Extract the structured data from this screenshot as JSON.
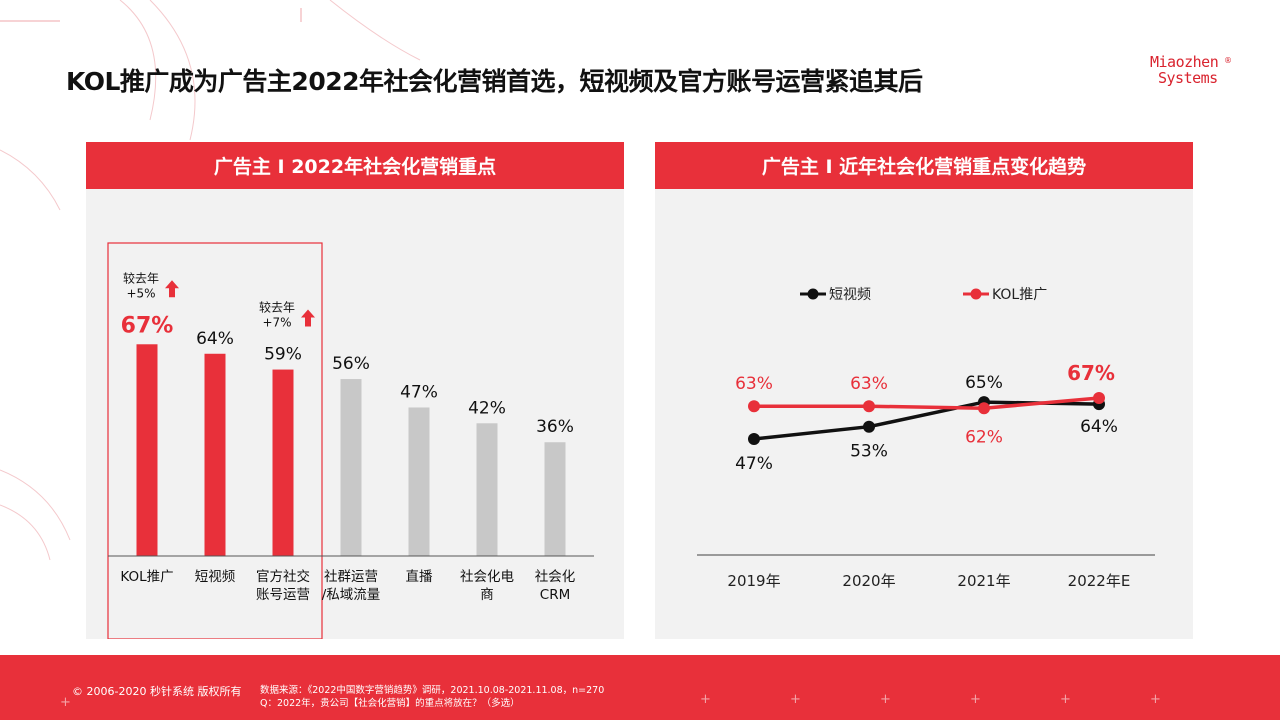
{
  "page": {
    "title": "KOL推广成为广告主2022年社会化营销首选，短视频及官方账号运营紧追其后",
    "logo_line1": "Miaozhen",
    "logo_line2": "Systems",
    "logo_reg": "®"
  },
  "footer": {
    "copyright": "© 2006-2020 秒针系统 版权所有",
    "source_line1": "数据来源：《2022中国数字营销趋势》调研，2021.10.08-2021.11.08，n=270",
    "source_line2": "Q：2022年，贵公司【社会化营销】的重点将放在？（多选）"
  },
  "colors": {
    "accent": "#e8303a",
    "gray_bar": "#c8c8c8",
    "black_line": "#111111"
  },
  "chart_data": [
    {
      "type": "bar",
      "title": "广告主 I 2022年社会化营销重点",
      "categories": [
        "KOL推广",
        "短视频",
        "官方社交账号运营",
        "社群运营/私域流量",
        "直播",
        "社会化电商",
        "社会化CRM"
      ],
      "category_lines": [
        [
          "KOL推广"
        ],
        [
          "短视频"
        ],
        [
          "官方社交",
          "账号运营"
        ],
        [
          "社群运营",
          "/私域流量"
        ],
        [
          "直播"
        ],
        [
          "社会化电",
          "商"
        ],
        [
          "社会化",
          "CRM"
        ]
      ],
      "values": [
        67,
        64,
        59,
        56,
        47,
        42,
        36
      ],
      "value_labels": [
        "67%",
        "64%",
        "59%",
        "56%",
        "47%",
        "42%",
        "36%"
      ],
      "highlighted": [
        true,
        true,
        true,
        false,
        false,
        false,
        false
      ],
      "annotations": [
        {
          "index": 0,
          "line1": "较去年",
          "line2": "+5%",
          "arrow": "up-arrow-icon"
        },
        {
          "index": 2,
          "line1": "较去年",
          "line2": "+7%",
          "arrow": "up-arrow-icon"
        }
      ],
      "ylim": [
        0,
        100
      ],
      "legend": "none"
    },
    {
      "type": "line",
      "title": "广告主 I 近年社会化营销重点变化趋势",
      "x": [
        "2019年",
        "2020年",
        "2021年",
        "2022年E"
      ],
      "series": [
        {
          "name": "短视频",
          "values": [
            47,
            53,
            65,
            64
          ],
          "labels": [
            "47%",
            "53%",
            "65%",
            "64%"
          ],
          "color": "#111111"
        },
        {
          "name": "KOL推广",
          "values": [
            63,
            63,
            62,
            67
          ],
          "labels": [
            "63%",
            "63%",
            "62%",
            "67%"
          ],
          "color": "#e8303a"
        }
      ],
      "ylim": [
        30,
        80
      ],
      "legend": "top-center"
    }
  ]
}
